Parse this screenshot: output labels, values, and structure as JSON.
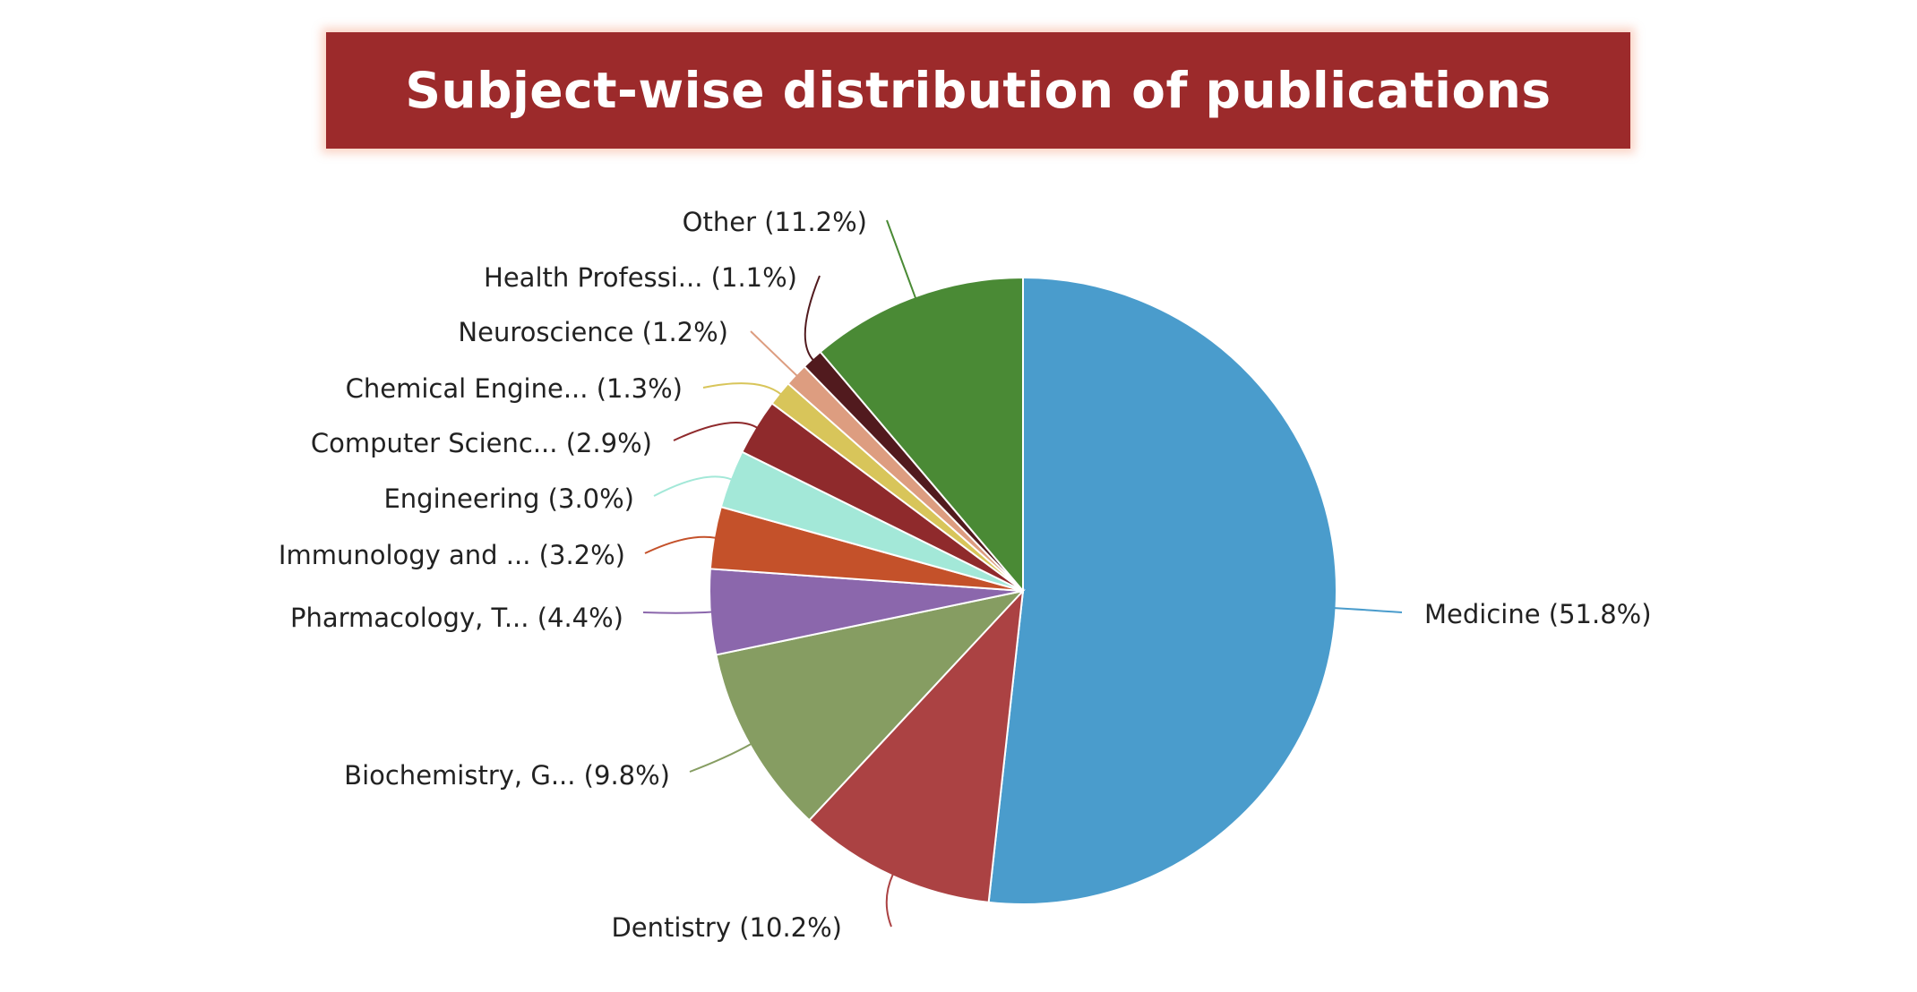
{
  "chart_data": {
    "type": "pie",
    "title": "Subject-wise distribution of publications",
    "slices": [
      {
        "label": "Medicine (51.8%)",
        "value": 51.8,
        "color": "#4a9ccc"
      },
      {
        "label": "Dentistry (10.2%)",
        "value": 10.2,
        "color": "#ab4243"
      },
      {
        "label": "Biochemistry, G... (9.8%)",
        "value": 9.8,
        "color": "#869d62"
      },
      {
        "label": "Pharmacology, T... (4.4%)",
        "value": 4.4,
        "color": "#8b67ac"
      },
      {
        "label": "Immunology and ... (3.2%)",
        "value": 3.2,
        "color": "#c4512a"
      },
      {
        "label": "Engineering (3.0%)",
        "value": 3.0,
        "color": "#a3e8d8"
      },
      {
        "label": "Computer Scienc... (2.9%)",
        "value": 2.9,
        "color": "#8f2a2c"
      },
      {
        "label": "Chemical Engine... (1.3%)",
        "value": 1.3,
        "color": "#d8c55a"
      },
      {
        "label": "Neuroscience (1.2%)",
        "value": 1.2,
        "color": "#dd9d80"
      },
      {
        "label": "Health Professi... (1.1%)",
        "value": 1.1,
        "color": "#511a1e"
      },
      {
        "label": "Other (11.2%)",
        "value": 11.2,
        "color": "#4a8a35"
      }
    ]
  }
}
